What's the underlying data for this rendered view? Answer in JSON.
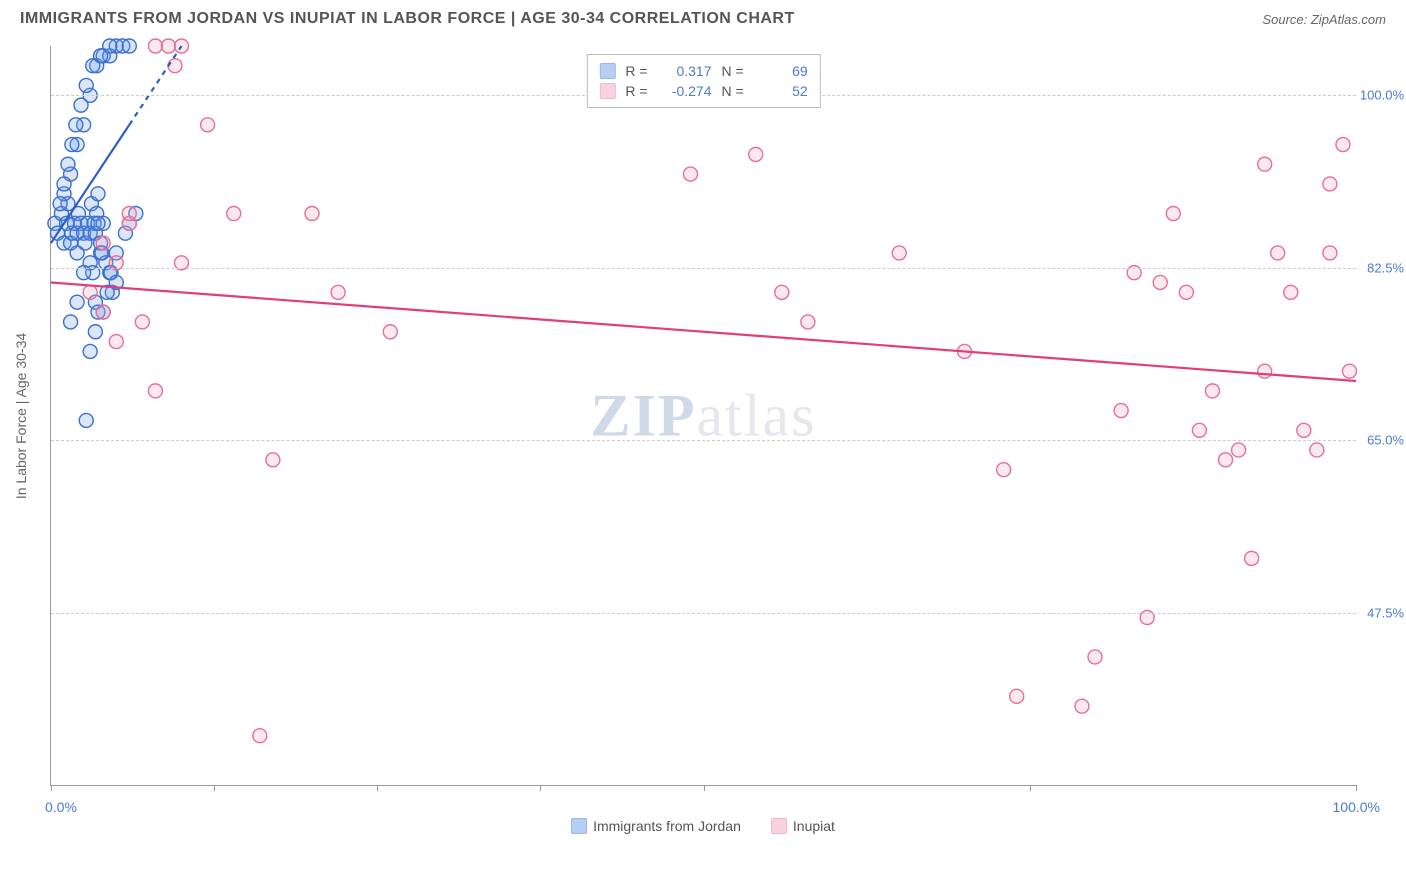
{
  "header": {
    "title": "IMMIGRANTS FROM JORDAN VS INUPIAT IN LABOR FORCE | AGE 30-34 CORRELATION CHART",
    "source_prefix": "Source: ",
    "source_name": "ZipAtlas.com"
  },
  "chart": {
    "type": "scatter",
    "yaxis_title": "In Labor Force | Age 30-34",
    "xlim": [
      0,
      100
    ],
    "ylim": [
      30,
      105
    ],
    "xtick_positions": [
      0,
      12.5,
      25,
      37.5,
      50,
      75,
      100
    ],
    "xtick_labels_shown": {
      "left": "0.0%",
      "right": "100.0%"
    },
    "ytick_positions": [
      47.5,
      65.0,
      82.5,
      100.0
    ],
    "ytick_labels": [
      "47.5%",
      "65.0%",
      "82.5%",
      "100.0%"
    ],
    "grid_color": "#cccccc",
    "axis_color": "#999999",
    "background_color": "#ffffff",
    "label_color": "#4a7bd0",
    "label_fontsize": 13,
    "title_color": "#555555",
    "marker_radius": 7,
    "marker_fill_opacity": 0.25,
    "marker_stroke_width": 1.4,
    "trend_line_width": 2.2,
    "trend_dash": "5,5",
    "series": [
      {
        "name": "Immigrants from Jordan",
        "color": "#6f9fe8",
        "stroke": "#3b6fd1",
        "trend_color": "#2b5fc1",
        "R": 0.317,
        "N": 69,
        "trend": {
          "x1": 0,
          "y1": 85,
          "x2": 10,
          "y2": 105,
          "dash_after_x": 6
        },
        "points": [
          [
            0.3,
            87
          ],
          [
            0.5,
            86
          ],
          [
            0.8,
            88
          ],
          [
            1.0,
            85
          ],
          [
            1.2,
            87
          ],
          [
            1.3,
            89
          ],
          [
            1.5,
            85
          ],
          [
            1.6,
            86
          ],
          [
            1.8,
            87
          ],
          [
            2.0,
            86
          ],
          [
            2.1,
            88
          ],
          [
            2.3,
            87
          ],
          [
            2.5,
            86
          ],
          [
            2.6,
            85
          ],
          [
            2.8,
            87
          ],
          [
            3.0,
            86
          ],
          [
            3.1,
            89
          ],
          [
            3.3,
            87
          ],
          [
            3.4,
            86
          ],
          [
            3.5,
            88
          ],
          [
            3.6,
            90
          ],
          [
            3.8,
            84
          ],
          [
            4.0,
            87
          ],
          [
            4.2,
            83
          ],
          [
            4.5,
            82
          ],
          [
            4.7,
            80
          ],
          [
            2.7,
            67
          ],
          [
            2.0,
            84
          ],
          [
            3.0,
            83
          ],
          [
            3.2,
            82
          ],
          [
            3.4,
            79
          ],
          [
            3.6,
            78
          ],
          [
            3.8,
            85
          ],
          [
            1.0,
            90
          ],
          [
            1.5,
            92
          ],
          [
            2.0,
            95
          ],
          [
            2.5,
            97
          ],
          [
            3.0,
            100
          ],
          [
            3.5,
            103
          ],
          [
            4.0,
            104
          ],
          [
            4.5,
            104
          ],
          [
            5.0,
            105
          ],
          [
            5.5,
            105
          ],
          [
            6.0,
            105
          ],
          [
            4.5,
            105
          ],
          [
            3.8,
            104
          ],
          [
            3.2,
            103
          ],
          [
            2.7,
            101
          ],
          [
            2.3,
            99
          ],
          [
            1.9,
            97
          ],
          [
            1.6,
            95
          ],
          [
            1.3,
            93
          ],
          [
            1.0,
            91
          ],
          [
            0.7,
            89
          ],
          [
            6.5,
            88
          ],
          [
            5.7,
            86
          ],
          [
            5.0,
            84
          ],
          [
            4.6,
            82
          ],
          [
            4.3,
            80
          ],
          [
            3.9,
            84
          ],
          [
            3.6,
            87
          ],
          [
            3.4,
            76
          ],
          [
            3.0,
            74
          ],
          [
            5.0,
            81
          ],
          [
            4.0,
            78
          ],
          [
            6.0,
            87
          ],
          [
            2.0,
            79
          ],
          [
            2.5,
            82
          ],
          [
            1.5,
            77
          ]
        ]
      },
      {
        "name": "Inupiat",
        "color": "#f2a8bd",
        "stroke": "#e76f95",
        "trend_color": "#e23d7a",
        "R": -0.274,
        "N": 52,
        "trend": {
          "x1": 0,
          "y1": 81,
          "x2": 100,
          "y2": 71,
          "dash_after_x": 999
        },
        "points": [
          [
            4,
            85
          ],
          [
            5,
            83
          ],
          [
            6,
            87
          ],
          [
            7,
            77
          ],
          [
            8,
            70
          ],
          [
            10,
            83
          ],
          [
            12,
            97
          ],
          [
            14,
            88
          ],
          [
            16,
            35
          ],
          [
            17,
            63
          ],
          [
            20,
            88
          ],
          [
            22,
            80
          ],
          [
            26,
            76
          ],
          [
            49,
            92
          ],
          [
            54,
            94
          ],
          [
            56,
            80
          ],
          [
            58,
            77
          ],
          [
            65,
            84
          ],
          [
            70,
            74
          ],
          [
            73,
            62
          ],
          [
            74,
            39
          ],
          [
            79,
            38
          ],
          [
            80,
            43
          ],
          [
            82,
            68
          ],
          [
            83,
            82
          ],
          [
            84,
            47
          ],
          [
            85,
            81
          ],
          [
            86,
            88
          ],
          [
            87,
            80
          ],
          [
            88,
            66
          ],
          [
            89,
            70
          ],
          [
            90,
            63
          ],
          [
            91,
            64
          ],
          [
            92,
            53
          ],
          [
            93,
            72
          ],
          [
            93,
            93
          ],
          [
            94,
            84
          ],
          [
            95,
            80
          ],
          [
            96,
            66
          ],
          [
            97,
            64
          ],
          [
            98,
            84
          ],
          [
            98,
            91
          ],
          [
            99,
            95
          ],
          [
            99.5,
            72
          ],
          [
            3,
            80
          ],
          [
            4,
            78
          ],
          [
            5,
            75
          ],
          [
            6,
            88
          ],
          [
            8,
            105
          ],
          [
            9,
            105
          ],
          [
            10,
            105
          ],
          [
            9.5,
            103
          ]
        ]
      }
    ],
    "watermark": {
      "text_a": "ZIP",
      "text_b": "atlas"
    },
    "legend_top": {
      "r_label": "R =",
      "n_label": "N ="
    },
    "legend_bottom_labels": [
      "Immigrants from Jordan",
      "Inupiat"
    ]
  }
}
